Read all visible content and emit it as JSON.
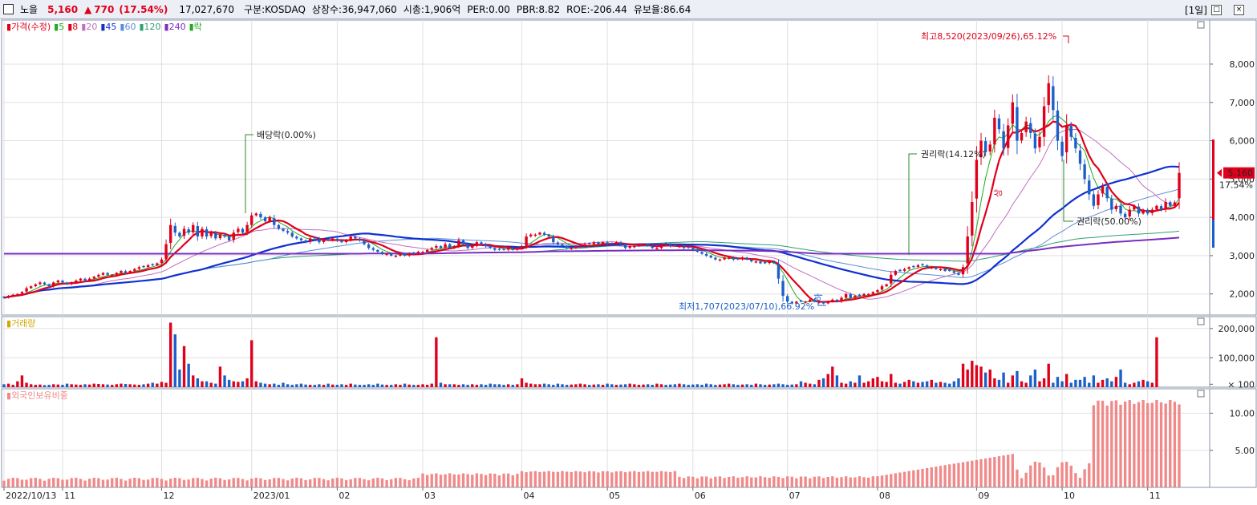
{
  "header": {
    "name": "노을",
    "price": "5,160",
    "change_arrow": "▲",
    "change": "770",
    "change_pct": "(17.54%)",
    "volume": "17,027,670",
    "market": "구분:KOSDAQ",
    "shares": "상장수:36,947,060",
    "mcap": "시총:1,906억",
    "per": "PER:0.00",
    "pbr": "PBR:8.82",
    "roe": "ROE:-206.44",
    "float": "유보율:86.64",
    "period": "[1일]"
  },
  "colors": {
    "up": "#e0001b",
    "down": "#1c5fc8",
    "ma5": "#22aa22",
    "ma8": "#e0001b",
    "ma20": "#c070c0",
    "ma45": "#1030d0",
    "ma60": "#5a8ed8",
    "ma120": "#30a070",
    "ma240": "#7a2ec0",
    "foreign": "#f08a8a",
    "grid": "#e0e0e0"
  },
  "chart_data": [
    {
      "type": "candlestick",
      "title": "가격(수정)",
      "legend": [
        {
          "label": "가격(수정)",
          "color": "#e0001b"
        },
        {
          "label": "5",
          "color": "#22aa22"
        },
        {
          "label": "8",
          "color": "#e0001b"
        },
        {
          "label": "20",
          "color": "#c070c0"
        },
        {
          "label": "45",
          "color": "#1030d0"
        },
        {
          "label": "60",
          "color": "#5a8ed8"
        },
        {
          "label": "120",
          "color": "#30a070"
        },
        {
          "label": "240",
          "color": "#7a2ec0"
        },
        {
          "label": "락",
          "color": "#22aa22"
        }
      ],
      "y_ticks": [
        "8,000",
        "7,000",
        "6,000",
        "5,000",
        "4,000",
        "3,000",
        "2,000"
      ],
      "y_tick_values": [
        8000,
        7000,
        6000,
        5000,
        4000,
        3000,
        2000
      ],
      "ylim": [
        1450,
        9150
      ],
      "x_ticks": [
        {
          "label": "2022/10/13",
          "idx": 0
        },
        {
          "label": "11",
          "idx": 13
        },
        {
          "label": "12",
          "idx": 35
        },
        {
          "label": "2023/01",
          "idx": 55
        },
        {
          "label": "02",
          "idx": 74
        },
        {
          "label": "03",
          "idx": 93
        },
        {
          "label": "04",
          "idx": 115
        },
        {
          "label": "05",
          "idx": 134
        },
        {
          "label": "06",
          "idx": 153
        },
        {
          "label": "07",
          "idx": 174
        },
        {
          "label": "08",
          "idx": 194
        },
        {
          "label": "09",
          "idx": 216
        },
        {
          "label": "10",
          "idx": 235
        },
        {
          "label": "11",
          "idx": 254
        }
      ],
      "closes": [
        1900,
        1950,
        1980,
        2000,
        2050,
        2150,
        2200,
        2250,
        2300,
        2250,
        2200,
        2300,
        2350,
        2300,
        2250,
        2300,
        2350,
        2400,
        2350,
        2400,
        2450,
        2500,
        2550,
        2500,
        2500,
        2550,
        2600,
        2550,
        2600,
        2650,
        2700,
        2700,
        2750,
        2750,
        2800,
        2900,
        3300,
        3800,
        3600,
        3500,
        3700,
        3600,
        3800,
        3500,
        3700,
        3500,
        3600,
        3450,
        3550,
        3500,
        3400,
        3600,
        3700,
        3600,
        3800,
        4050,
        4100,
        4000,
        3900,
        4000,
        3800,
        3700,
        3650,
        3600,
        3500,
        3450,
        3400,
        3350,
        3450,
        3450,
        3350,
        3400,
        3400,
        3450,
        3400,
        3350,
        3400,
        3500,
        3450,
        3400,
        3300,
        3200,
        3150,
        3100,
        3050,
        3050,
        3000,
        3000,
        3050,
        3000,
        3050,
        3050,
        3100,
        3100,
        3150,
        3200,
        3250,
        3200,
        3300,
        3200,
        3250,
        3400,
        3300,
        3200,
        3250,
        3350,
        3300,
        3250,
        3200,
        3150,
        3150,
        3150,
        3200,
        3150,
        3200,
        3250,
        3500,
        3550,
        3550,
        3600,
        3550,
        3500,
        3350,
        3300,
        3250,
        3200,
        3200,
        3250,
        3250,
        3300,
        3300,
        3350,
        3300,
        3350,
        3300,
        3300,
        3350,
        3300,
        3200,
        3250,
        3250,
        3300,
        3300,
        3250,
        3200,
        3200,
        3300,
        3300,
        3250,
        3250,
        3250,
        3200,
        3200,
        3150,
        3100,
        3050,
        3000,
        2950,
        2900,
        2900,
        2950,
        2950,
        2900,
        2900,
        2950,
        2900,
        2850,
        2850,
        2800,
        2800,
        2850,
        2800,
        2400,
        1950,
        1800,
        1750,
        1800,
        1800,
        1800,
        1850,
        1800,
        1800,
        1750,
        1800,
        1850,
        1800,
        1900,
        2000,
        1900,
        1950,
        1950,
        2000,
        2000,
        2050,
        2100,
        2200,
        2250,
        2500,
        2600,
        2600,
        2650,
        2700,
        2700,
        2750,
        2750,
        2700,
        2700,
        2650,
        2650,
        2600,
        2600,
        2550,
        2500,
        2700,
        3500,
        4400,
        5500,
        6000,
        5700,
        5900,
        6600,
        6300,
        5800,
        6400,
        7000,
        6000,
        6200,
        6500,
        6200,
        5800,
        6100,
        6900,
        7500,
        6800,
        6000,
        5600,
        6400,
        6100,
        5800,
        5400,
        5000,
        4600,
        4300,
        4600,
        4800,
        4500,
        4200,
        4300,
        4100,
        4000,
        4200,
        4300,
        4100,
        4200,
        4100,
        4200,
        4300,
        4200,
        4400,
        4300,
        4390,
        5160
      ],
      "volumes": [
        10,
        12,
        8,
        20,
        40,
        15,
        10,
        8,
        9,
        7,
        8,
        10,
        9,
        8,
        12,
        10,
        9,
        8,
        10,
        9,
        12,
        11,
        10,
        9,
        8,
        10,
        12,
        11,
        10,
        9,
        8,
        10,
        12,
        15,
        12,
        18,
        15,
        220,
        180,
        60,
        140,
        80,
        40,
        30,
        20,
        20,
        15,
        12,
        70,
        40,
        25,
        20,
        18,
        20,
        30,
        160,
        20,
        15,
        12,
        10,
        12,
        8,
        15,
        10,
        8,
        10,
        12,
        9,
        8,
        8,
        10,
        8,
        12,
        9,
        8,
        10,
        8,
        12,
        9,
        8,
        8,
        10,
        8,
        12,
        9,
        8,
        8,
        10,
        8,
        12,
        9,
        8,
        8,
        10,
        8,
        12,
        170,
        15,
        10,
        10,
        10,
        8,
        10,
        8,
        10,
        8,
        10,
        8,
        12,
        10,
        10,
        8,
        10,
        8,
        10,
        30,
        15,
        12,
        10,
        10,
        12,
        10,
        8,
        12,
        10,
        8,
        9,
        10,
        12,
        10,
        8,
        9,
        10,
        8,
        12,
        10,
        8,
        9,
        10,
        12,
        10,
        8,
        9,
        10,
        8,
        12,
        10,
        8,
        9,
        10,
        12,
        10,
        8,
        9,
        10,
        8,
        12,
        10,
        8,
        9,
        10,
        12,
        10,
        8,
        9,
        10,
        8,
        12,
        10,
        8,
        9,
        10,
        12,
        10,
        8,
        9,
        10,
        20,
        15,
        12,
        10,
        25,
        30,
        45,
        70,
        40,
        15,
        12,
        20,
        15,
        40,
        15,
        20,
        30,
        35,
        20,
        18,
        45,
        15,
        12,
        18,
        25,
        20,
        15,
        18,
        20,
        25,
        15,
        18,
        15,
        12,
        20,
        30,
        80,
        60,
        90,
        75,
        70,
        50,
        60,
        30,
        25,
        50,
        15,
        40,
        55,
        20,
        15,
        40,
        60,
        20,
        30,
        80,
        15,
        35,
        20,
        45,
        15,
        25,
        25,
        35,
        15,
        40,
        15,
        25,
        30,
        20,
        35,
        60,
        15,
        10,
        15,
        20,
        25,
        20,
        15,
        170
      ],
      "annotations": [
        {
          "text": "최고8,520(2023/09/26),65.12%",
          "color": "#e0001b"
        },
        {
          "text": "최저1,707(2023/07/10),66.92%",
          "color": "#1c5fc8"
        },
        {
          "text": "배당락(0.00%)",
          "color": "#222222"
        },
        {
          "text": "권리락(14.12%)",
          "color": "#222222"
        },
        {
          "text": "권리락(50.00%)",
          "color": "#222222"
        }
      ],
      "marker_labels": {
        "up_marker": "상",
        "down_marker": "하"
      },
      "last_price_label": "5,160",
      "last_pct_label": "17.54%"
    },
    {
      "type": "bar",
      "title": "거래량",
      "y_ticks": [
        "200,000",
        "100,000",
        "× 100"
      ]
    },
    {
      "type": "bar",
      "title": "외국인보유비중",
      "y_ticks": [
        "10.00",
        "5.00"
      ],
      "ylim": [
        0,
        13.3
      ]
    }
  ]
}
